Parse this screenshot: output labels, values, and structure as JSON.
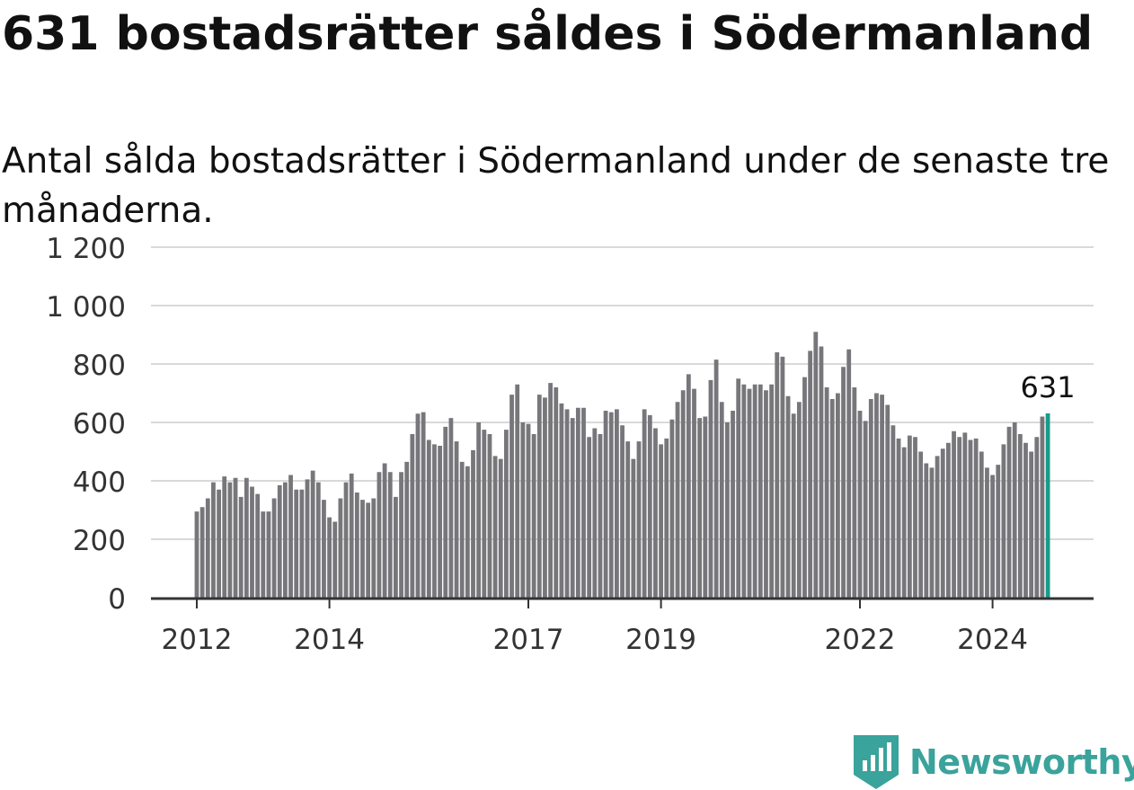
{
  "title": "631 bostadsrätter såldes i Södermanland",
  "subtitle": "Antal sålda bostadsrätter i Södermanland under de senaste tre månaderna.",
  "brand": {
    "name": "Newsworthy",
    "icon": "newsworthy-logo-icon",
    "color": "#3aa39b"
  },
  "chart_data": {
    "type": "bar",
    "ylim": [
      0,
      1200
    ],
    "yticks": [
      0,
      200,
      400,
      600,
      800,
      1000,
      1200
    ],
    "ytick_labels": [
      "0",
      "200",
      "400",
      "600",
      "800",
      "1 000",
      "1 200"
    ],
    "xtick_labels": [
      {
        "year": 2012,
        "label": "2012"
      },
      {
        "year": 2014,
        "label": "2014"
      },
      {
        "year": 2017,
        "label": "2017"
      },
      {
        "year": 2019,
        "label": "2019"
      },
      {
        "year": 2022,
        "label": "2022"
      },
      {
        "year": 2024,
        "label": "2024"
      }
    ],
    "grid": true,
    "start": "2012-01",
    "bar_color": "#77767b",
    "highlight_color": "#1a9a8a",
    "highlight_label": "631",
    "values": [
      295,
      310,
      340,
      395,
      370,
      415,
      395,
      410,
      345,
      410,
      380,
      355,
      295,
      295,
      340,
      385,
      395,
      420,
      370,
      370,
      405,
      435,
      395,
      335,
      275,
      260,
      340,
      395,
      425,
      360,
      335,
      325,
      340,
      430,
      460,
      430,
      345,
      430,
      465,
      560,
      630,
      635,
      540,
      525,
      520,
      585,
      615,
      535,
      465,
      450,
      505,
      600,
      575,
      560,
      485,
      475,
      575,
      695,
      730,
      600,
      595,
      560,
      695,
      685,
      735,
      720,
      665,
      645,
      615,
      650,
      650,
      550,
      580,
      560,
      640,
      635,
      645,
      590,
      535,
      475,
      535,
      645,
      625,
      580,
      525,
      545,
      610,
      670,
      710,
      765,
      715,
      615,
      620,
      745,
      815,
      670,
      600,
      640,
      750,
      730,
      715,
      730,
      730,
      710,
      730,
      840,
      825,
      690,
      630,
      670,
      755,
      845,
      910,
      860,
      720,
      680,
      700,
      790,
      850,
      720,
      640,
      605,
      680,
      700,
      695,
      660,
      590,
      545,
      515,
      555,
      550,
      500,
      460,
      445,
      485,
      510,
      530,
      570,
      550,
      565,
      540,
      545,
      500,
      445,
      420,
      455,
      525,
      585,
      600,
      560,
      530,
      500,
      550,
      620,
      631
    ]
  }
}
